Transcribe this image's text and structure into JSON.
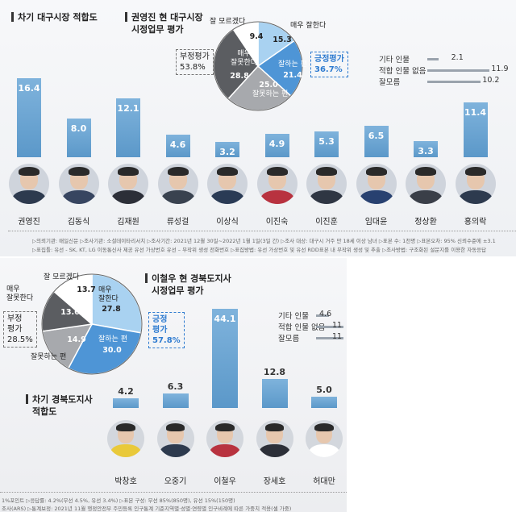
{
  "chart_data": [
    {
      "type": "bar",
      "title": "차기 대구시장 적합도",
      "categories": [
        "권영진",
        "김동식",
        "김재원",
        "류성걸",
        "이상식",
        "이진숙",
        "이진훈",
        "임대윤",
        "정상환",
        "홍의락"
      ],
      "values": [
        16.4,
        8.0,
        12.1,
        4.6,
        3.2,
        4.9,
        5.3,
        6.5,
        3.3,
        11.4
      ],
      "value_labels": [
        "16.4",
        "8.0",
        "12.1",
        "4.6",
        "3.2",
        "4.9",
        "5.3",
        "6.5",
        "3.3",
        "11.4"
      ],
      "side_items": [
        {
          "label": "기타 인물",
          "value": 2.1,
          "value_label": "2.1"
        },
        {
          "label": "적합 인물 없음",
          "value": 11.9,
          "value_label": "11.9"
        },
        {
          "label": "잘모름",
          "value": 10.2,
          "value_label": "10.2"
        }
      ]
    },
    {
      "type": "pie",
      "title_lines": [
        "권영진 현 대구시장",
        "시정업무 평가"
      ],
      "slices": [
        {
          "label": "매우 잘한다",
          "value": 15.3,
          "value_label": "15.3",
          "color": "#a9d2f1"
        },
        {
          "label": "잘하는 편",
          "value": 21.4,
          "value_label": "21.4",
          "color": "#4e95d6"
        },
        {
          "label": "잘못하는 편",
          "value": 25.0,
          "value_label": "25.0",
          "color": "#a7a9ad"
        },
        {
          "label": "매우 잘못한다",
          "value": 28.8,
          "value_label": "28.8",
          "color": "#5b5d61"
        },
        {
          "label": "잘 모르겠다",
          "value": 9.4,
          "value_label": "9.4",
          "color": "#ffffff"
        }
      ],
      "positive": {
        "label": "긍정평가",
        "value": "36.7%"
      },
      "negative": {
        "label": "부정평가",
        "value": "53.8%"
      },
      "inner_labels": {
        "neg_top": "매우",
        "neg_bottom": "잘못한다",
        "wrong": "잘못하는 편",
        "good": "잘하는 편",
        "unknown": "잘 모르겠다",
        "very_good": "매우 잘한다"
      }
    },
    {
      "type": "pie",
      "title_lines": [
        "이철우 현 경북도지사",
        "시정업무 평가"
      ],
      "slices": [
        {
          "label": "매우 잘한다",
          "value": 27.8,
          "value_label": "27.8",
          "color": "#a9d2f1"
        },
        {
          "label": "잘하는 편",
          "value": 30.0,
          "value_label": "30.0",
          "color": "#4e95d6"
        },
        {
          "label": "잘못하는 편",
          "value": 14.9,
          "value_label": "14.9",
          "color": "#a7a9ad"
        },
        {
          "label": "매우 잘못한다",
          "value": 13.6,
          "value_label": "13.6",
          "color": "#5b5d61"
        },
        {
          "label": "잘 모르겠다",
          "value": 13.7,
          "value_label": "13.7",
          "color": "#ffffff"
        }
      ],
      "positive": {
        "label_lines": [
          "긍정",
          "평가"
        ],
        "value": "57.8%"
      },
      "negative": {
        "label_lines": [
          "부정",
          "평가"
        ],
        "value": "28.5%"
      },
      "inner_labels": {
        "very_good_1": "매우",
        "very_good_2": "잘한다",
        "good": "잘하는 편",
        "wrong": "잘못하는 편",
        "very_bad_1": "매우",
        "very_bad_2": "잘못한다",
        "unknown": "잘 모르겠다"
      }
    },
    {
      "type": "bar",
      "title_lines": [
        "차기 경북도지사",
        "적합도"
      ],
      "categories": [
        "박창호",
        "오중기",
        "이철우",
        "장세호",
        "허대만"
      ],
      "values": [
        4.2,
        6.3,
        44.1,
        12.8,
        5.0
      ],
      "value_labels": [
        "4.2",
        "6.3",
        "44.1",
        "12.8",
        "5.0"
      ],
      "side_items": [
        {
          "label": "기타 인물",
          "value": 4.6,
          "value_label": "4.6"
        },
        {
          "label": "적합 인물 없음",
          "value": 11,
          "value_label": "11"
        },
        {
          "label": "잘모름",
          "value": 11,
          "value_label": "11"
        }
      ]
    }
  ],
  "notes1": [
    "▷의뢰기관: 매일신문 ▷조사기관: 소셜데이타리서치 ▷조사기간: 2021년 12월 30일~2022년 1월 1일(3일 간) ▷조사 대상: 대구시 거주 만 18세 이상 남녀 ▷표본 수: 1천명 ▷표본오차: 95% 신뢰수준에 ±3.1",
    "▷표집틀: 유선 - SK, KT, LG 이동통신사 제공 유선 가상번호 유선 – 무작위 생성 전화번호 ▷표집방법: 유선 가상번호 및 유선 RDD표본 내 무작위 생성 및 추출 ▷조사방법: 구조화된 설문지를 이용한 자동응답"
  ],
  "notes2": [
    "1%포인트 ▷응답률: 4.2%(무선 4.5%, 유선 3.4%) ▷표본 구성: 무선 85%(850명), 유선 15%(150명)",
    "조사(ARS) ▷통계보정: 2021년 11월 행정안전부 주민등록 인구통계 기준지역별·성별·연령별 인구비례에 따른 가중치 적용(셀 가중)"
  ]
}
